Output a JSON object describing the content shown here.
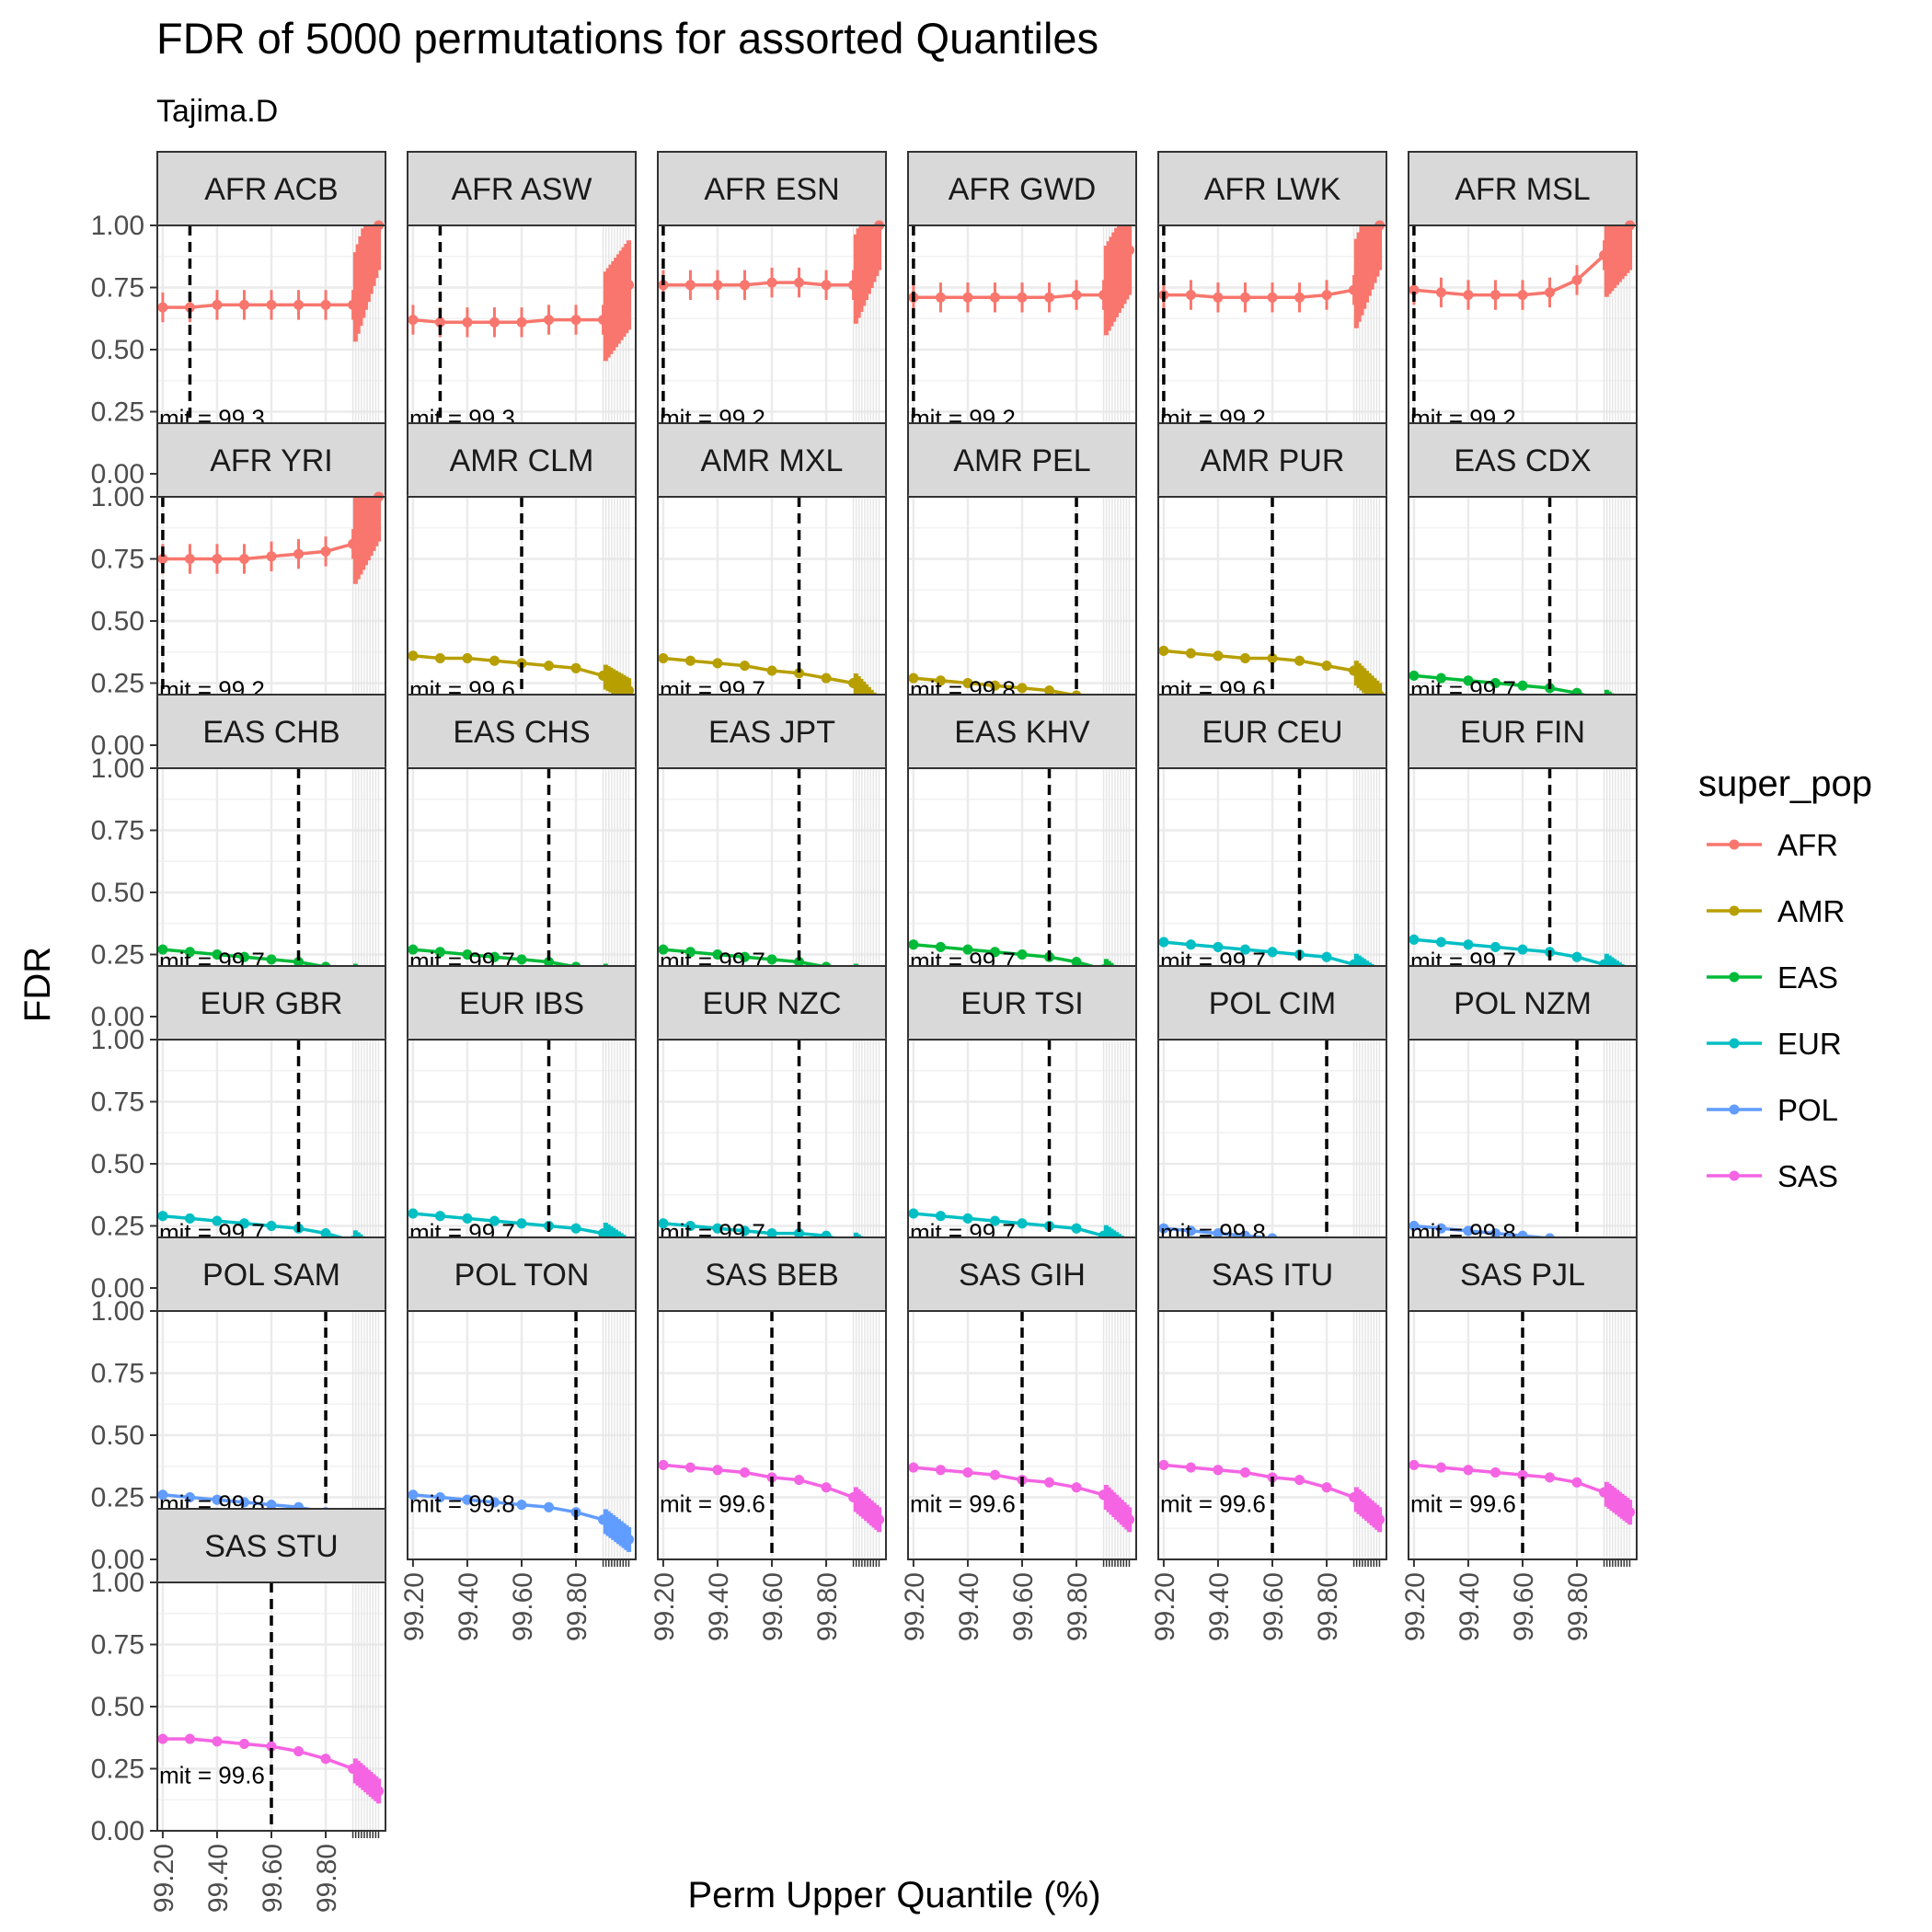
{
  "chart_data": {
    "type": "line",
    "title": "FDR of 5000 permutations for assorted Quantiles",
    "subtitle": "Tajima.D",
    "xlabel": "Perm Upper Quantile (%)",
    "ylabel": "FDR",
    "ylim": [
      0,
      1
    ],
    "xlim": [
      99.18,
      100.02
    ],
    "yticks": [
      "0.00",
      "0.25",
      "0.50",
      "0.75",
      "1.00"
    ],
    "xticks": [
      "99.20",
      "99.40",
      "99.60",
      "99.80"
    ],
    "x": [
      99.2,
      99.3,
      99.4,
      99.5,
      99.6,
      99.7,
      99.8,
      99.9
    ],
    "grid": true,
    "legend_title": "super_pop",
    "legend_position": "right",
    "legend": [
      {
        "name": "AFR",
        "color": "#F8766D"
      },
      {
        "name": "AMR",
        "color": "#B79F00"
      },
      {
        "name": "EAS",
        "color": "#00BA38"
      },
      {
        "name": "EUR",
        "color": "#00BFC4"
      },
      {
        "name": "POL",
        "color": "#619CFF"
      },
      {
        "name": "SAS",
        "color": "#F564E3"
      }
    ],
    "label_prefix": "mit = ",
    "panels": [
      {
        "label": "AFR ACB",
        "super_pop": "AFR",
        "limit": 99.3,
        "limit_text": "99.3",
        "values": [
          0.67,
          0.67,
          0.68,
          0.68,
          0.68,
          0.68,
          0.68,
          0.68
        ],
        "tail_max": 1.0
      },
      {
        "label": "AFR ASW",
        "super_pop": "AFR",
        "limit": 99.3,
        "limit_text": "99.3",
        "values": [
          0.62,
          0.61,
          0.61,
          0.61,
          0.61,
          0.62,
          0.62,
          0.62
        ],
        "tail_max": 0.76
      },
      {
        "label": "AFR ESN",
        "super_pop": "AFR",
        "limit": 99.2,
        "limit_text": "99.2",
        "values": [
          0.76,
          0.76,
          0.76,
          0.76,
          0.77,
          0.77,
          0.76,
          0.76
        ],
        "tail_max": 1.0
      },
      {
        "label": "AFR GWD",
        "super_pop": "AFR",
        "limit": 99.2,
        "limit_text": "99.2",
        "values": [
          0.71,
          0.71,
          0.71,
          0.71,
          0.71,
          0.71,
          0.72,
          0.72
        ],
        "tail_max": 0.9
      },
      {
        "label": "AFR LWK",
        "super_pop": "AFR",
        "limit": 99.2,
        "limit_text": "99.2",
        "values": [
          0.72,
          0.72,
          0.71,
          0.71,
          0.71,
          0.71,
          0.72,
          0.74
        ],
        "tail_max": 1.0
      },
      {
        "label": "AFR MSL",
        "super_pop": "AFR",
        "limit": 99.2,
        "limit_text": "99.2",
        "values": [
          0.74,
          0.73,
          0.72,
          0.72,
          0.72,
          0.73,
          0.78,
          0.88
        ],
        "tail_max": 1.0
      },
      {
        "label": "AFR YRI",
        "super_pop": "AFR",
        "limit": 99.2,
        "limit_text": "99.2",
        "values": [
          0.75,
          0.75,
          0.75,
          0.75,
          0.76,
          0.77,
          0.78,
          0.81
        ],
        "tail_max": 1.0
      },
      {
        "label": "AMR CLM",
        "super_pop": "AMR",
        "limit": 99.6,
        "limit_text": "99.6",
        "values": [
          0.36,
          0.35,
          0.35,
          0.34,
          0.33,
          0.32,
          0.31,
          0.28
        ],
        "tail_max": 0.22
      },
      {
        "label": "AMR MXL",
        "super_pop": "AMR",
        "limit": 99.7,
        "limit_text": "99.7",
        "values": [
          0.35,
          0.34,
          0.33,
          0.32,
          0.3,
          0.29,
          0.27,
          0.25
        ],
        "tail_max": 0.14
      },
      {
        "label": "AMR PEL",
        "super_pop": "AMR",
        "limit": 99.8,
        "limit_text": "99.8",
        "values": [
          0.27,
          0.26,
          0.25,
          0.24,
          0.23,
          0.22,
          0.2,
          0.16
        ],
        "tail_max": 0.1
      },
      {
        "label": "AMR PUR",
        "super_pop": "AMR",
        "limit": 99.6,
        "limit_text": "99.6",
        "values": [
          0.38,
          0.37,
          0.36,
          0.35,
          0.35,
          0.34,
          0.32,
          0.3
        ],
        "tail_max": 0.2
      },
      {
        "label": "EAS CDX",
        "super_pop": "EAS",
        "limit": 99.7,
        "limit_text": "99.7",
        "values": [
          0.28,
          0.27,
          0.26,
          0.25,
          0.24,
          0.23,
          0.21,
          0.18
        ],
        "tail_max": 0.11
      },
      {
        "label": "EAS CHB",
        "super_pop": "EAS",
        "limit": 99.7,
        "limit_text": "99.7",
        "values": [
          0.27,
          0.26,
          0.25,
          0.24,
          0.23,
          0.22,
          0.2,
          0.17
        ],
        "tail_max": 0.1
      },
      {
        "label": "EAS CHS",
        "super_pop": "EAS",
        "limit": 99.7,
        "limit_text": "99.7",
        "values": [
          0.27,
          0.26,
          0.25,
          0.24,
          0.23,
          0.22,
          0.2,
          0.17
        ],
        "tail_max": 0.1
      },
      {
        "label": "EAS JPT",
        "super_pop": "EAS",
        "limit": 99.7,
        "limit_text": "99.7",
        "values": [
          0.27,
          0.26,
          0.25,
          0.24,
          0.23,
          0.22,
          0.2,
          0.17
        ],
        "tail_max": 0.1
      },
      {
        "label": "EAS KHV",
        "super_pop": "EAS",
        "limit": 99.7,
        "limit_text": "99.7",
        "values": [
          0.29,
          0.28,
          0.27,
          0.26,
          0.25,
          0.24,
          0.22,
          0.19
        ],
        "tail_max": 0.11
      },
      {
        "label": "EUR CEU",
        "super_pop": "EUR",
        "limit": 99.7,
        "limit_text": "99.7",
        "values": [
          0.3,
          0.29,
          0.28,
          0.27,
          0.26,
          0.25,
          0.24,
          0.21
        ],
        "tail_max": 0.14
      },
      {
        "label": "EUR FIN",
        "super_pop": "EUR",
        "limit": 99.7,
        "limit_text": "99.7",
        "values": [
          0.31,
          0.3,
          0.29,
          0.28,
          0.27,
          0.26,
          0.24,
          0.21
        ],
        "tail_max": 0.14
      },
      {
        "label": "EUR GBR",
        "super_pop": "EUR",
        "limit": 99.7,
        "limit_text": "99.7",
        "values": [
          0.29,
          0.28,
          0.27,
          0.26,
          0.25,
          0.24,
          0.22,
          0.19
        ],
        "tail_max": 0.11
      },
      {
        "label": "EUR IBS",
        "super_pop": "EUR",
        "limit": 99.7,
        "limit_text": "99.7",
        "values": [
          0.3,
          0.29,
          0.28,
          0.27,
          0.26,
          0.25,
          0.24,
          0.22
        ],
        "tail_max": 0.15
      },
      {
        "label": "EUR NZC",
        "super_pop": "EUR",
        "limit": 99.7,
        "limit_text": "99.7",
        "values": [
          0.26,
          0.25,
          0.24,
          0.23,
          0.22,
          0.22,
          0.21,
          0.18
        ],
        "tail_max": 0.11
      },
      {
        "label": "EUR TSI",
        "super_pop": "EUR",
        "limit": 99.7,
        "limit_text": "99.7",
        "values": [
          0.3,
          0.29,
          0.28,
          0.27,
          0.26,
          0.25,
          0.24,
          0.21
        ],
        "tail_max": 0.14
      },
      {
        "label": "POL CIM",
        "super_pop": "POL",
        "limit": 99.8,
        "limit_text": "99.8",
        "values": [
          0.24,
          0.23,
          0.22,
          0.21,
          0.2,
          0.18,
          0.16,
          0.13
        ],
        "tail_max": 0.07
      },
      {
        "label": "POL NZM",
        "super_pop": "POL",
        "limit": 99.8,
        "limit_text": "99.8",
        "values": [
          0.25,
          0.24,
          0.23,
          0.22,
          0.21,
          0.2,
          0.18,
          0.14
        ],
        "tail_max": 0.07
      },
      {
        "label": "POL SAM",
        "super_pop": "POL",
        "limit": 99.8,
        "limit_text": "99.8",
        "values": [
          0.26,
          0.25,
          0.24,
          0.23,
          0.22,
          0.21,
          0.19,
          0.16
        ],
        "tail_max": 0.09
      },
      {
        "label": "POL TON",
        "super_pop": "POL",
        "limit": 99.8,
        "limit_text": "99.8",
        "values": [
          0.26,
          0.25,
          0.24,
          0.23,
          0.22,
          0.21,
          0.19,
          0.16
        ],
        "tail_max": 0.08
      },
      {
        "label": "SAS BEB",
        "super_pop": "SAS",
        "limit": 99.6,
        "limit_text": "99.6",
        "values": [
          0.38,
          0.37,
          0.36,
          0.35,
          0.33,
          0.32,
          0.29,
          0.25
        ],
        "tail_max": 0.16
      },
      {
        "label": "SAS GIH",
        "super_pop": "SAS",
        "limit": 99.6,
        "limit_text": "99.6",
        "values": [
          0.37,
          0.36,
          0.35,
          0.34,
          0.32,
          0.31,
          0.29,
          0.26
        ],
        "tail_max": 0.16
      },
      {
        "label": "SAS ITU",
        "super_pop": "SAS",
        "limit": 99.6,
        "limit_text": "99.6",
        "values": [
          0.38,
          0.37,
          0.36,
          0.35,
          0.33,
          0.32,
          0.29,
          0.25
        ],
        "tail_max": 0.16
      },
      {
        "label": "SAS PJL",
        "super_pop": "SAS",
        "limit": 99.6,
        "limit_text": "99.6",
        "values": [
          0.38,
          0.37,
          0.36,
          0.35,
          0.34,
          0.33,
          0.31,
          0.27
        ],
        "tail_max": 0.19
      },
      {
        "label": "SAS STU",
        "super_pop": "SAS",
        "limit": 99.6,
        "limit_text": "99.6",
        "values": [
          0.37,
          0.37,
          0.36,
          0.35,
          0.34,
          0.32,
          0.29,
          0.25
        ],
        "tail_max": 0.16
      }
    ]
  }
}
